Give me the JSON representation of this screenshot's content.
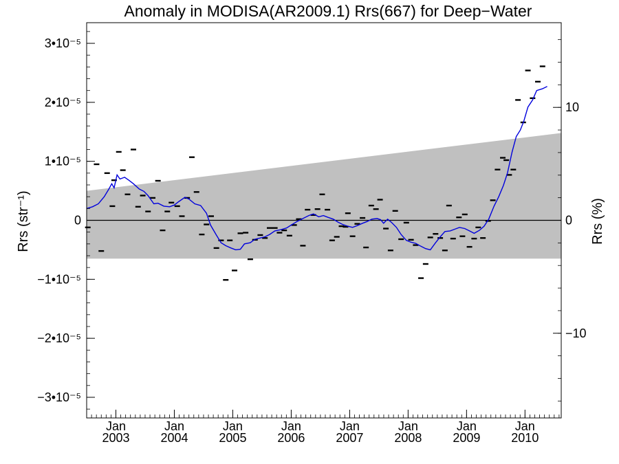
{
  "chart_data": {
    "type": "line",
    "title": "Anomaly in MODISA(AR2009.1) Rrs(667) for Deep−Water",
    "ylabel_left": "Rrs (str⁻¹)",
    "ylabel_right": "Rrs (%)",
    "xlabel": "",
    "xlim": [
      2002.5,
      2010.62
    ],
    "ylim": [
      -3.35e-05,
      3.35e-05
    ],
    "ylim_right_percent": [
      -17.5,
      17.5
    ],
    "grid": false,
    "y_ticks": [
      {
        "value": 3e-05,
        "label": "3•10⁻⁵"
      },
      {
        "value": 2e-05,
        "label": "2•10⁻⁵"
      },
      {
        "value": 1e-05,
        "label": "1•10⁻⁵"
      },
      {
        "value": 0,
        "label": "0"
      },
      {
        "value": -1e-05,
        "label": "−1•10⁻⁵"
      },
      {
        "value": -2e-05,
        "label": "−2•10⁻⁵"
      },
      {
        "value": -3e-05,
        "label": "−3•10⁻⁵"
      }
    ],
    "y_ticks_right": [
      {
        "value": 10,
        "label": "10"
      },
      {
        "value": 0,
        "label": "0"
      },
      {
        "value": -10,
        "label": "−10"
      }
    ],
    "x_ticks": [
      {
        "value": 2003.0,
        "month": "Jan",
        "year": "2003"
      },
      {
        "value": 2004.0,
        "month": "Jan",
        "year": "2004"
      },
      {
        "value": 2005.0,
        "month": "Jan",
        "year": "2005"
      },
      {
        "value": 2006.0,
        "month": "Jan",
        "year": "2006"
      },
      {
        "value": 2007.0,
        "month": "Jan",
        "year": "2007"
      },
      {
        "value": 2008.0,
        "month": "Jan",
        "year": "2008"
      },
      {
        "value": 2009.0,
        "month": "Jan",
        "year": "2009"
      },
      {
        "value": 2010.0,
        "month": "Jan",
        "year": "2010"
      }
    ],
    "band": {
      "upper": [
        [
          2002.5,
          5e-06
        ],
        [
          2010.62,
          1.48e-05
        ]
      ],
      "lower": [
        [
          2002.5,
          -6.5e-06
        ],
        [
          2010.62,
          -6.5e-06
        ]
      ],
      "color": "#c0c0c0"
    },
    "zero_line": true,
    "series": [
      {
        "kind": "markers",
        "color": "#000000",
        "points": [
          [
            2002.52,
            -1.2e-06
          ],
          [
            2002.67,
            9.5e-06
          ],
          [
            2002.75,
            -5.2e-06
          ],
          [
            2002.85,
            8e-06
          ],
          [
            2002.94,
            2.4e-06
          ],
          [
            2002.97,
            6.8e-06
          ],
          [
            2003.05,
            1.16e-05
          ],
          [
            2003.12,
            8.5e-06
          ],
          [
            2003.2,
            4.4e-06
          ],
          [
            2003.3,
            1.2e-05
          ],
          [
            2003.38,
            2.3e-06
          ],
          [
            2003.46,
            4.2e-06
          ],
          [
            2003.55,
            1.5e-06
          ],
          [
            2003.63,
            3.8e-06
          ],
          [
            2003.72,
            6.7e-06
          ],
          [
            2003.8,
            -1.7e-06
          ],
          [
            2003.88,
            1.5e-06
          ],
          [
            2003.95,
            3e-06
          ],
          [
            2004.05,
            2.4e-06
          ],
          [
            2004.13,
            7e-07
          ],
          [
            2004.22,
            3.8e-06
          ],
          [
            2004.3,
            1.07e-05
          ],
          [
            2004.38,
            4.8e-06
          ],
          [
            2004.47,
            -2.4e-06
          ],
          [
            2004.55,
            -7e-07
          ],
          [
            2004.63,
            7e-07
          ],
          [
            2004.72,
            -4.7e-06
          ],
          [
            2004.8,
            -3.4e-06
          ],
          [
            2004.88,
            -1.01e-05
          ],
          [
            2004.95,
            -3.4e-06
          ],
          [
            2005.03,
            -8.5e-06
          ],
          [
            2005.13,
            -2.2e-06
          ],
          [
            2005.22,
            -2.1e-06
          ],
          [
            2005.3,
            -6.6e-06
          ],
          [
            2005.38,
            -3.3e-06
          ],
          [
            2005.47,
            -2.5e-06
          ],
          [
            2005.55,
            -3e-06
          ],
          [
            2005.63,
            -1.3e-06
          ],
          [
            2005.72,
            -1.3e-06
          ],
          [
            2005.8,
            -2.1e-06
          ],
          [
            2005.88,
            -1.7e-06
          ],
          [
            2005.97,
            -2.6e-06
          ],
          [
            2006.05,
            -8e-07
          ],
          [
            2006.13,
            2e-07
          ],
          [
            2006.2,
            -4.3e-06
          ],
          [
            2006.28,
            1.8e-06
          ],
          [
            2006.38,
            9e-07
          ],
          [
            2006.45,
            1.9e-06
          ],
          [
            2006.53,
            4.4e-06
          ],
          [
            2006.62,
            1.8e-06
          ],
          [
            2006.7,
            -3.4e-06
          ],
          [
            2006.78,
            -2.8e-06
          ],
          [
            2006.86,
            -1e-06
          ],
          [
            2006.93,
            -1.1e-06
          ],
          [
            2006.97,
            1.2e-06
          ],
          [
            2007.05,
            -2.7e-06
          ],
          [
            2007.13,
            -6e-07
          ],
          [
            2007.22,
            4e-07
          ],
          [
            2007.28,
            -4.6e-06
          ],
          [
            2007.37,
            2.5e-06
          ],
          [
            2007.45,
            1.9e-06
          ],
          [
            2007.52,
            3.5e-06
          ],
          [
            2007.62,
            -1.4e-06
          ],
          [
            2007.7,
            -5.1e-06
          ],
          [
            2007.78,
            1.6e-06
          ],
          [
            2007.88,
            -3.2e-06
          ],
          [
            2007.97,
            -4e-07
          ],
          [
            2008.05,
            -3.3e-06
          ],
          [
            2008.13,
            -4.2e-06
          ],
          [
            2008.22,
            -9.8e-06
          ],
          [
            2008.3,
            -7.4e-06
          ],
          [
            2008.38,
            -2.9e-06
          ],
          [
            2008.47,
            -2.3e-06
          ],
          [
            2008.55,
            -3e-06
          ],
          [
            2008.63,
            -5.1e-06
          ],
          [
            2008.7,
            2.5e-06
          ],
          [
            2008.77,
            -3.1e-06
          ],
          [
            2008.87,
            5e-07
          ],
          [
            2008.93,
            -2.7e-06
          ],
          [
            2008.97,
            1e-06
          ],
          [
            2009.05,
            -4.5e-06
          ],
          [
            2009.13,
            -3.1e-06
          ],
          [
            2009.2,
            -1.2e-06
          ],
          [
            2009.28,
            -3e-06
          ],
          [
            2009.37,
            -1e-07
          ],
          [
            2009.45,
            3.4e-06
          ],
          [
            2009.53,
            8.6e-06
          ],
          [
            2009.62,
            1.06e-05
          ],
          [
            2009.68,
            1.02e-05
          ],
          [
            2009.73,
            7.7e-06
          ],
          [
            2009.8,
            8.6e-06
          ],
          [
            2009.88,
            2.04e-05
          ],
          [
            2009.97,
            1.66e-05
          ],
          [
            2010.05,
            2.54e-05
          ],
          [
            2010.13,
            2.07e-05
          ],
          [
            2010.22,
            2.35e-05
          ],
          [
            2010.3,
            2.61e-05
          ]
        ]
      },
      {
        "kind": "line",
        "color": "#0000dd",
        "points": [
          [
            2002.5,
            2e-06
          ],
          [
            2002.6,
            2.3e-06
          ],
          [
            2002.7,
            2.8e-06
          ],
          [
            2002.8,
            4e-06
          ],
          [
            2002.88,
            5.3e-06
          ],
          [
            2002.93,
            6.2e-06
          ],
          [
            2002.97,
            5.5e-06
          ],
          [
            2003.02,
            7.7e-06
          ],
          [
            2003.07,
            7e-06
          ],
          [
            2003.15,
            7.3e-06
          ],
          [
            2003.22,
            6.8e-06
          ],
          [
            2003.3,
            6.2e-06
          ],
          [
            2003.4,
            5.3e-06
          ],
          [
            2003.48,
            4.9e-06
          ],
          [
            2003.55,
            4.2e-06
          ],
          [
            2003.65,
            2.8e-06
          ],
          [
            2003.72,
            2.9e-06
          ],
          [
            2003.82,
            2.4e-06
          ],
          [
            2003.92,
            2.3e-06
          ],
          [
            2004.0,
            2.6e-06
          ],
          [
            2004.08,
            3.2e-06
          ],
          [
            2004.18,
            3.9e-06
          ],
          [
            2004.25,
            3.6e-06
          ],
          [
            2004.35,
            2.8e-06
          ],
          [
            2004.45,
            2.5e-06
          ],
          [
            2004.55,
            1.2e-06
          ],
          [
            2004.62,
            -8e-07
          ],
          [
            2004.72,
            -2.5e-06
          ],
          [
            2004.8,
            -3.8e-06
          ],
          [
            2004.88,
            -4.3e-06
          ],
          [
            2004.97,
            -4.7e-06
          ],
          [
            2005.05,
            -5e-06
          ],
          [
            2005.13,
            -4.9e-06
          ],
          [
            2005.2,
            -4e-06
          ],
          [
            2005.3,
            -3.8e-06
          ],
          [
            2005.38,
            -3.2e-06
          ],
          [
            2005.47,
            -3e-06
          ],
          [
            2005.55,
            -2.8e-06
          ],
          [
            2005.63,
            -2.4e-06
          ],
          [
            2005.72,
            -1.8e-06
          ],
          [
            2005.82,
            -1.6e-06
          ],
          [
            2005.92,
            -1.3e-06
          ],
          [
            2006.0,
            -8e-07
          ],
          [
            2006.1,
            -2e-07
          ],
          [
            2006.2,
            3e-07
          ],
          [
            2006.3,
            8e-07
          ],
          [
            2006.38,
            1.1e-06
          ],
          [
            2006.47,
            6e-07
          ],
          [
            2006.55,
            8e-07
          ],
          [
            2006.63,
            5e-07
          ],
          [
            2006.72,
            2e-07
          ],
          [
            2006.8,
            -3e-07
          ],
          [
            2006.88,
            -7e-07
          ],
          [
            2006.97,
            -1e-06
          ],
          [
            2007.05,
            -1.2e-06
          ],
          [
            2007.13,
            -9e-07
          ],
          [
            2007.22,
            -5e-07
          ],
          [
            2007.3,
            -2e-07
          ],
          [
            2007.38,
            2e-07
          ],
          [
            2007.47,
            3e-07
          ],
          [
            2007.53,
            1e-07
          ],
          [
            2007.58,
            -5e-07
          ],
          [
            2007.65,
            2e-07
          ],
          [
            2007.72,
            -4e-07
          ],
          [
            2007.8,
            -1.2e-06
          ],
          [
            2007.88,
            -2.4e-06
          ],
          [
            2007.97,
            -3.4e-06
          ],
          [
            2008.05,
            -3.7e-06
          ],
          [
            2008.13,
            -3.9e-06
          ],
          [
            2008.22,
            -4.4e-06
          ],
          [
            2008.3,
            -4.8e-06
          ],
          [
            2008.38,
            -5e-06
          ],
          [
            2008.47,
            -3.8e-06
          ],
          [
            2008.55,
            -2.8e-06
          ],
          [
            2008.63,
            -1.9e-06
          ],
          [
            2008.72,
            -1.8e-06
          ],
          [
            2008.8,
            -1.5e-06
          ],
          [
            2008.88,
            -1.2e-06
          ],
          [
            2008.97,
            -1.4e-06
          ],
          [
            2009.05,
            -1.8e-06
          ],
          [
            2009.13,
            -2.2e-06
          ],
          [
            2009.22,
            -1.7e-06
          ],
          [
            2009.3,
            -1e-06
          ],
          [
            2009.38,
            2e-07
          ],
          [
            2009.47,
            2.4e-06
          ],
          [
            2009.55,
            4e-06
          ],
          [
            2009.63,
            5.9e-06
          ],
          [
            2009.7,
            8e-06
          ],
          [
            2009.78,
            1.16e-05
          ],
          [
            2009.85,
            1.42e-05
          ],
          [
            2009.92,
            1.53e-05
          ],
          [
            2009.98,
            1.68e-05
          ],
          [
            2010.05,
            1.92e-05
          ],
          [
            2010.13,
            2.04e-05
          ],
          [
            2010.2,
            2.2e-05
          ],
          [
            2010.3,
            2.23e-05
          ],
          [
            2010.38,
            2.27e-05
          ]
        ]
      }
    ]
  }
}
